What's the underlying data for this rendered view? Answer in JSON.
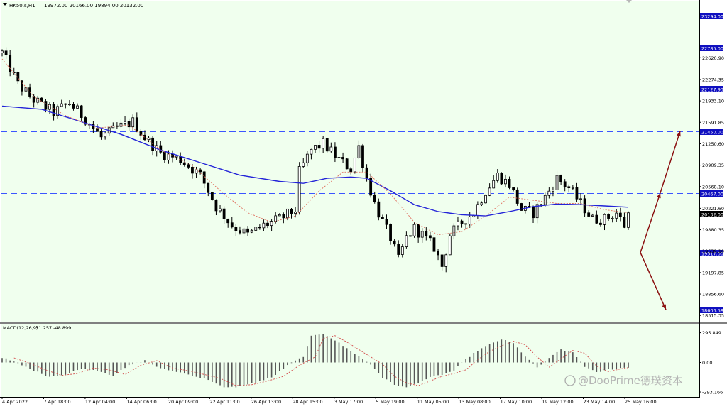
{
  "header": {
    "symbol": "HK50.s,H1",
    "ohlc": "19972.00 20166.00 19894.00 20132.00"
  },
  "macd_header": {
    "label": "MACD(12,26,9)",
    "values": "-51.257 -48.899"
  },
  "watermark": {
    "text": "@DooPrime德璞资本"
  },
  "colors": {
    "background": "#f0ffee",
    "level_line": "#3c55ff",
    "ma_slow": "#2323d8",
    "ma_fast": "#e07060",
    "signal": "#d24b4b",
    "arrow": "#8b1010",
    "candle": "#000000",
    "price_tag_bg": "#1010c0"
  },
  "chart_data": [
    {
      "type": "candlestick",
      "title": "",
      "x_tick_labels": [
        "4 Apr 2022",
        "7 Apr 18:00",
        "12 Apr 04:00",
        "14 Apr 06:00",
        "20 Apr 09:00",
        "22 Apr 11:00",
        "26 Apr 13:00",
        "28 Apr 15:00",
        "3 May 17:00",
        "5 May 19:00",
        "11 May 05:00",
        "13 May 08:00",
        "17 May 10:00",
        "19 May 12:00",
        "23 May 14:00",
        "25 May 16:00"
      ],
      "y_tick_labels": [
        "22620.90",
        "22274.35",
        "21933.10",
        "21591.85",
        "21250.60",
        "20909.35",
        "20568.10",
        "20221.60",
        "19880.35",
        "19539.10",
        "19197.85",
        "18856.60",
        "18515.35"
      ],
      "ylim": [
        18450,
        23450
      ],
      "current_price": "20132.00",
      "levels": [
        "23294.00",
        "22785.00",
        "22127.93",
        "21450.00",
        "20467.00",
        "19517.00",
        "18606.58"
      ],
      "close_path": [
        [
          0,
          22700
        ],
        [
          4,
          22200
        ],
        [
          8,
          21950
        ],
        [
          13,
          21750
        ],
        [
          17,
          21900
        ],
        [
          21,
          21650
        ],
        [
          25,
          21350
        ],
        [
          29,
          21500
        ],
        [
          33,
          21600
        ],
        [
          36,
          21350
        ],
        [
          40,
          21100
        ],
        [
          45,
          21000
        ],
        [
          50,
          20750
        ],
        [
          54,
          20250
        ],
        [
          58,
          19950
        ],
        [
          62,
          19800
        ],
        [
          66,
          19950
        ],
        [
          70,
          20050
        ],
        [
          74,
          20200
        ],
        [
          75,
          20800
        ],
        [
          78,
          21150
        ],
        [
          81,
          21250
        ],
        [
          85,
          21000
        ],
        [
          88,
          20850
        ],
        [
          90,
          21200
        ],
        [
          92,
          20700
        ],
        [
          94,
          20300
        ],
        [
          96,
          20000
        ],
        [
          98,
          19750
        ],
        [
          100,
          19400
        ],
        [
          102,
          19750
        ],
        [
          104,
          19900
        ],
        [
          106,
          19800
        ],
        [
          109,
          19600
        ],
        [
          111,
          19300
        ],
        [
          113,
          19800
        ],
        [
          116,
          20000
        ],
        [
          119,
          20150
        ],
        [
          122,
          20500
        ],
        [
          125,
          20750
        ],
        [
          128,
          20600
        ],
        [
          131,
          20200
        ],
        [
          134,
          20150
        ],
        [
          137,
          20400
        ],
        [
          140,
          20700
        ],
        [
          143,
          20550
        ],
        [
          146,
          20300
        ],
        [
          149,
          20050
        ],
        [
          152,
          20050
        ],
        [
          155,
          20150
        ],
        [
          157,
          19950
        ],
        [
          158,
          20132
        ]
      ],
      "ma_slow_path": [
        [
          0,
          21850
        ],
        [
          10,
          21800
        ],
        [
          20,
          21600
        ],
        [
          30,
          21400
        ],
        [
          40,
          21150
        ],
        [
          50,
          20950
        ],
        [
          60,
          20750
        ],
        [
          70,
          20650
        ],
        [
          76,
          20620
        ],
        [
          82,
          20700
        ],
        [
          88,
          20720
        ],
        [
          92,
          20700
        ],
        [
          98,
          20500
        ],
        [
          104,
          20280
        ],
        [
          110,
          20170
        ],
        [
          116,
          20120
        ],
        [
          122,
          20100
        ],
        [
          128,
          20170
        ],
        [
          134,
          20250
        ],
        [
          140,
          20290
        ],
        [
          146,
          20280
        ],
        [
          152,
          20260
        ],
        [
          158,
          20240
        ]
      ],
      "ma_fast_path": [
        [
          0,
          22600
        ],
        [
          8,
          22000
        ],
        [
          16,
          21700
        ],
        [
          24,
          21500
        ],
        [
          32,
          21550
        ],
        [
          40,
          21150
        ],
        [
          48,
          20900
        ],
        [
          56,
          20450
        ],
        [
          62,
          20150
        ],
        [
          68,
          20000
        ],
        [
          74,
          20100
        ],
        [
          80,
          20500
        ],
        [
          86,
          20800
        ],
        [
          92,
          20800
        ],
        [
          98,
          20450
        ],
        [
          104,
          20000
        ],
        [
          110,
          19800
        ],
        [
          116,
          19850
        ],
        [
          122,
          20100
        ],
        [
          128,
          20400
        ],
        [
          134,
          20350
        ],
        [
          140,
          20300
        ],
        [
          146,
          20300
        ],
        [
          152,
          20200
        ],
        [
          158,
          20150
        ]
      ],
      "projection_up": [
        [
          19517,
          20467,
          21450
        ]
      ],
      "projection_down": [
        [
          19517,
          18606.58
        ]
      ]
    },
    {
      "type": "histogram",
      "title": "MACD(12,26,9)",
      "y_tick_labels": [
        "295.849",
        "0.00",
        "-293.166"
      ],
      "ylim": [
        -300,
        300
      ],
      "histogram_path": [
        [
          0,
          50
        ],
        [
          4,
          -10
        ],
        [
          8,
          -80
        ],
        [
          12,
          -140
        ],
        [
          16,
          -120
        ],
        [
          20,
          -60
        ],
        [
          24,
          -80
        ],
        [
          28,
          -130
        ],
        [
          32,
          -30
        ],
        [
          36,
          20
        ],
        [
          40,
          -60
        ],
        [
          44,
          -90
        ],
        [
          48,
          -130
        ],
        [
          52,
          -170
        ],
        [
          56,
          -250
        ],
        [
          60,
          -240
        ],
        [
          64,
          -200
        ],
        [
          68,
          -150
        ],
        [
          72,
          -30
        ],
        [
          76,
          60
        ],
        [
          78,
          260
        ],
        [
          81,
          290
        ],
        [
          84,
          220
        ],
        [
          87,
          140
        ],
        [
          90,
          60
        ],
        [
          93,
          -20
        ],
        [
          96,
          -150
        ],
        [
          99,
          -220
        ],
        [
          102,
          -250
        ],
        [
          105,
          -200
        ],
        [
          108,
          -150
        ],
        [
          111,
          -120
        ],
        [
          114,
          -80
        ],
        [
          117,
          30
        ],
        [
          120,
          120
        ],
        [
          123,
          180
        ],
        [
          126,
          230
        ],
        [
          129,
          190
        ],
        [
          132,
          60
        ],
        [
          135,
          -50
        ],
        [
          138,
          40
        ],
        [
          141,
          130
        ],
        [
          144,
          100
        ],
        [
          147,
          -40
        ],
        [
          150,
          -100
        ],
        [
          153,
          -70
        ],
        [
          156,
          -55
        ],
        [
          158,
          -51
        ]
      ]
    }
  ]
}
